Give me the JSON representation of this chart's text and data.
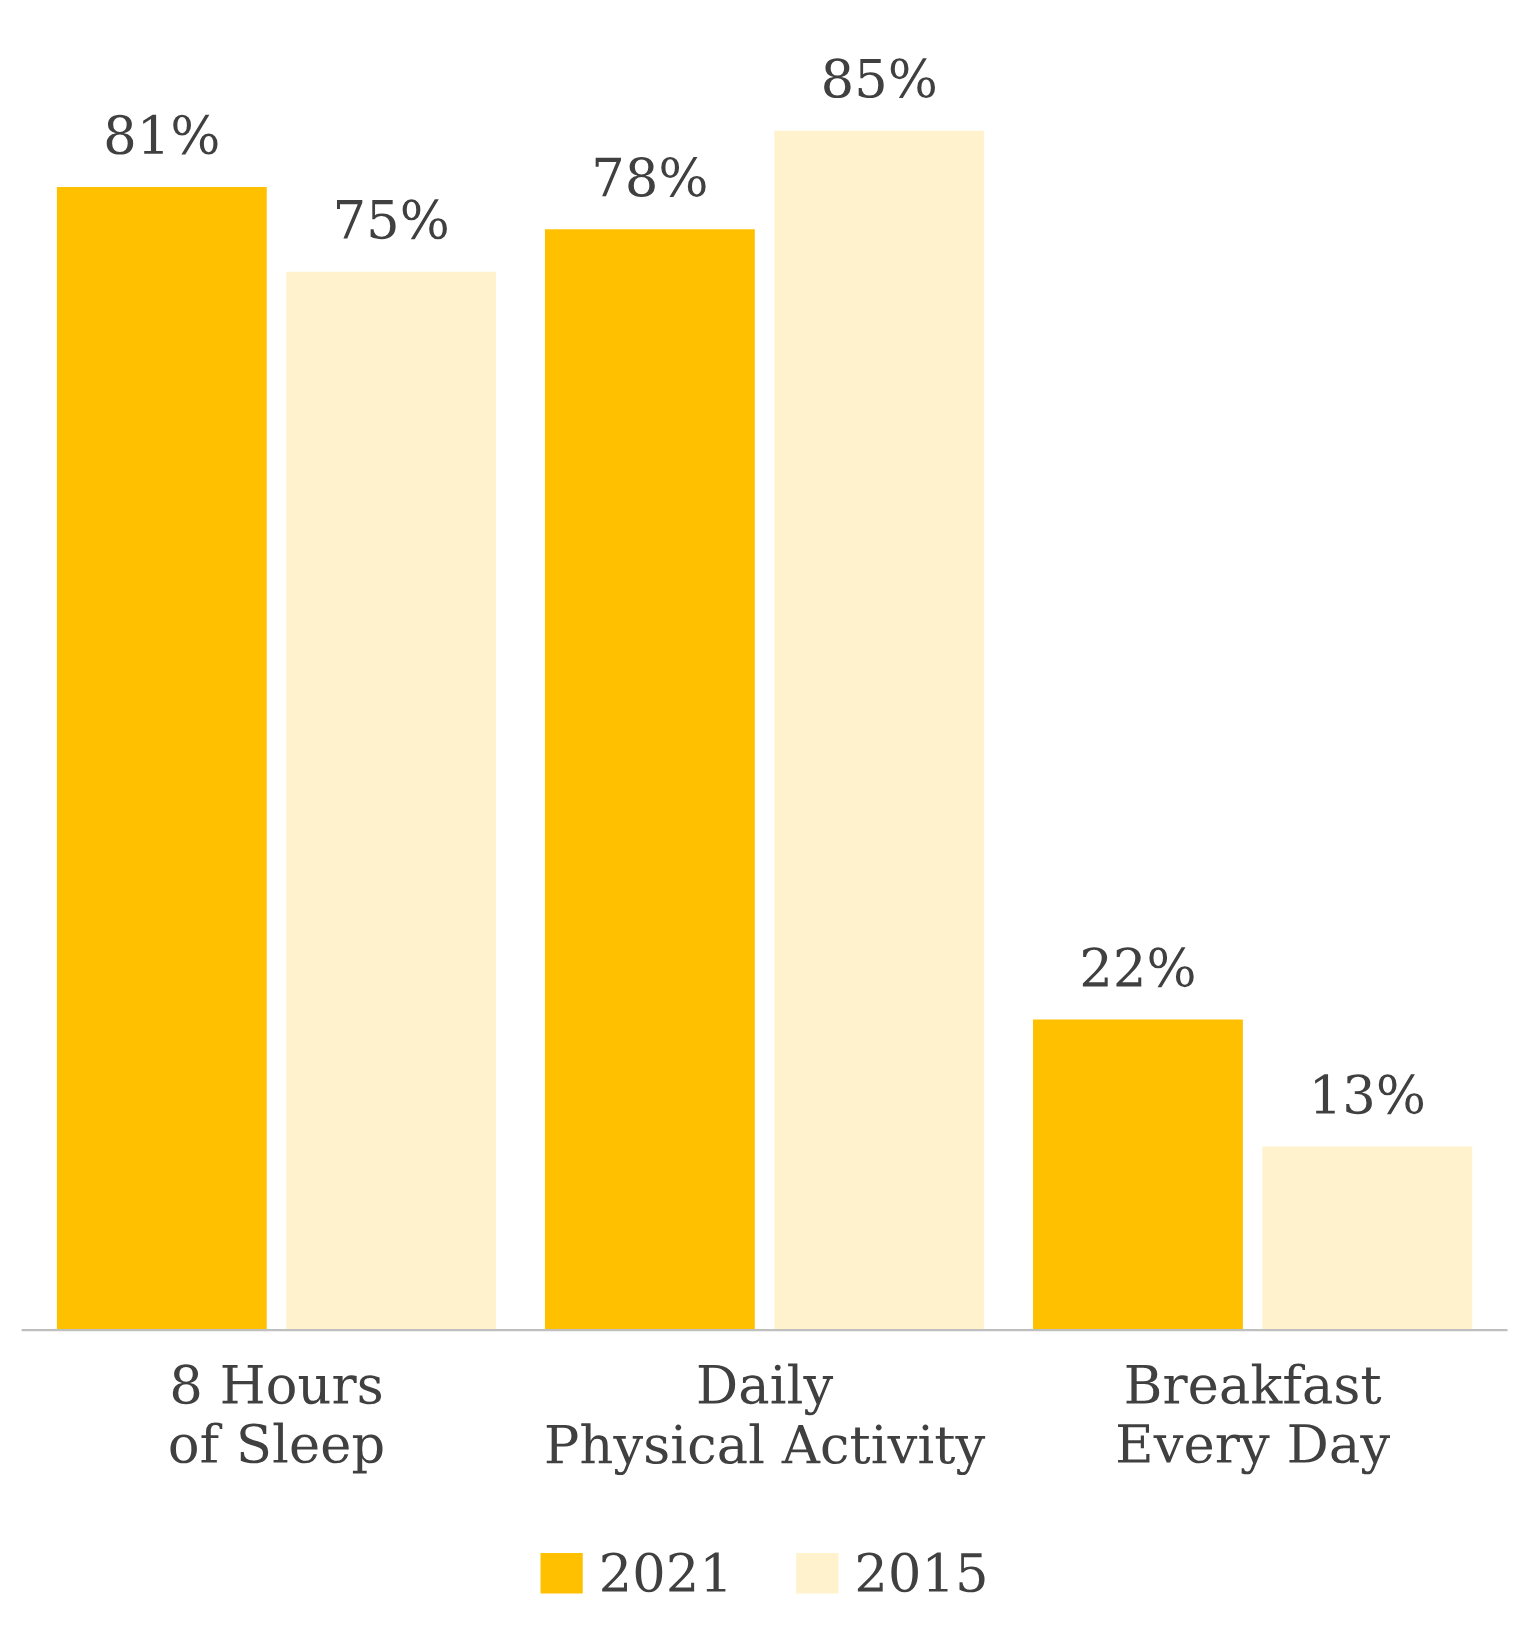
{
  "chart_data": {
    "type": "bar",
    "categories": [
      "8 Hours\nof Sleep",
      "Daily\nPhysical Activity",
      "Breakfast\nEvery Day"
    ],
    "series": [
      {
        "name": "2021",
        "color": "#ffc000",
        "values": [
          81,
          78,
          22
        ],
        "value_labels": [
          "81%",
          "78%",
          "22%"
        ]
      },
      {
        "name": "2015",
        "color": "#fff2cc",
        "values": [
          75,
          85,
          13
        ],
        "value_labels": [
          "75%",
          "85%",
          "13%"
        ]
      }
    ],
    "grid": false,
    "legend": "bottom"
  }
}
